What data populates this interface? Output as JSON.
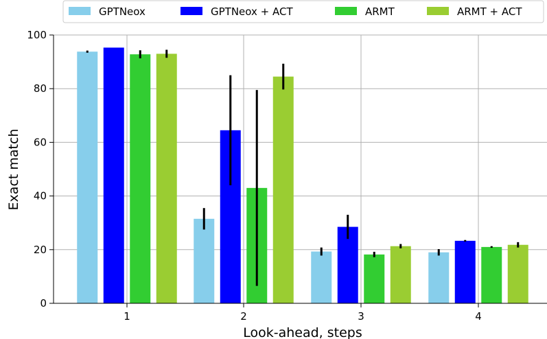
{
  "chart_data": {
    "type": "bar",
    "categories": [
      "1",
      "2",
      "3",
      "4"
    ],
    "series": [
      {
        "name": "GPTNeox",
        "color": "#87CEEB",
        "values": [
          93.8,
          31.5,
          19.3,
          19.0
        ],
        "error": [
          0.4,
          4.0,
          1.5,
          1.2
        ]
      },
      {
        "name": "GPTNeox + ACT",
        "color": "#0000FF",
        "values": [
          95.3,
          64.5,
          28.5,
          23.3
        ],
        "error": [
          0.0,
          20.5,
          4.5,
          0.3
        ]
      },
      {
        "name": "ARMT",
        "color": "#32CD32",
        "values": [
          92.8,
          43.0,
          18.2,
          21.0
        ],
        "error": [
          1.5,
          36.5,
          1.0,
          0.3
        ]
      },
      {
        "name": "ARMT + ACT",
        "color": "#9ACD32",
        "values": [
          93.0,
          84.5,
          21.3,
          21.8
        ],
        "error": [
          1.5,
          4.8,
          0.8,
          1.0
        ]
      }
    ],
    "xlabel": "Look-ahead, steps",
    "ylabel": "Exact match",
    "ylim": [
      0,
      100
    ],
    "yticks": [
      0,
      20,
      40,
      60,
      80,
      100
    ],
    "grid": true,
    "legend_position": "top"
  }
}
